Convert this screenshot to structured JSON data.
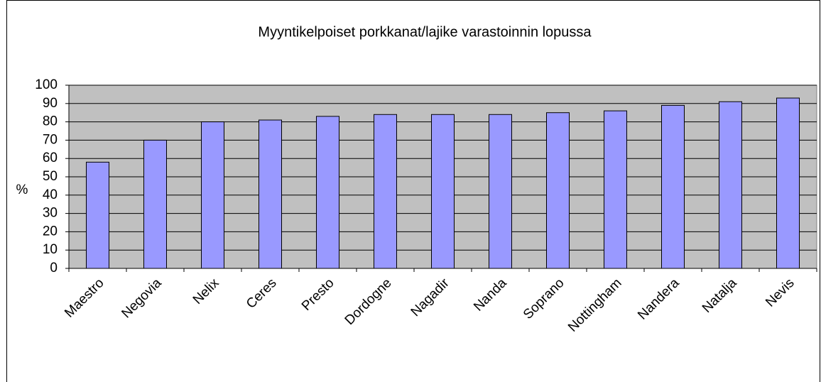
{
  "chart_data": {
    "type": "bar",
    "title": "Myyntikelpoiset porkkanat/lajike varastoinnin lopussa",
    "y_label": "%",
    "categories": [
      "Maestro",
      "Negovia",
      "Nelix",
      "Ceres",
      "Presto",
      "Dordogne",
      "Nagadir",
      "Nanda",
      "Soprano",
      "Nottingham",
      "Nandera",
      "Natalja",
      "Nevis"
    ],
    "values": [
      58,
      70,
      80,
      81,
      83,
      84,
      84,
      84,
      85,
      86,
      89,
      91,
      93
    ],
    "color": "#9999ff",
    "ylim": [
      0,
      100
    ],
    "yticks": [
      0,
      10,
      20,
      30,
      40,
      50,
      60,
      70,
      80,
      90,
      100
    ],
    "grid": true
  }
}
